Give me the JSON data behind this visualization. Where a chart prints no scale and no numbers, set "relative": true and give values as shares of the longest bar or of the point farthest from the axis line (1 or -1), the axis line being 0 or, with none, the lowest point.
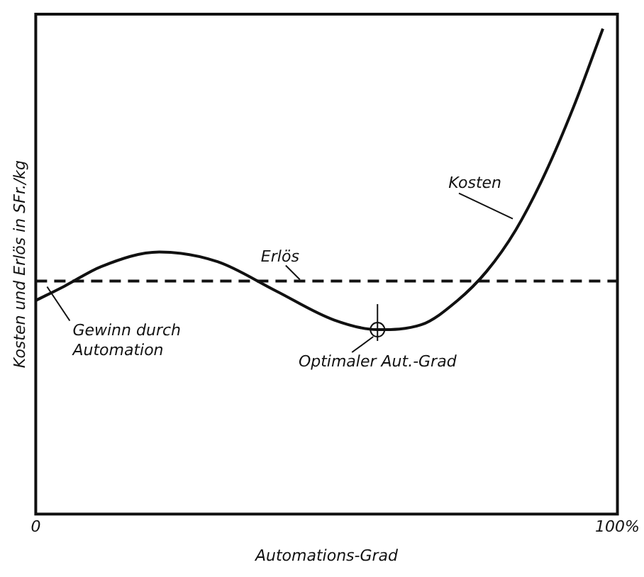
{
  "chart_data": {
    "type": "line",
    "relative": true,
    "xlabel": "Automations-Grad",
    "ylabel": "Kosten und Erlös in SFr./kg",
    "xlim": [
      0,
      100
    ],
    "xticks": [
      0,
      {
        "value": 100,
        "label": "100%"
      }
    ],
    "series": [
      {
        "name": "Kosten",
        "color": "#111111",
        "x": [
          0,
          5,
          11.25,
          21.25,
          31.25,
          41.25,
          51.25,
          58.75,
          66.25,
          72.5,
          77.5,
          82.5,
          87.5,
          92.5,
          97.5
        ],
        "values": [
          0.44,
          0.47,
          0.51,
          0.54,
          0.52,
          0.46,
          0.4,
          0.38,
          0.39,
          0.44,
          0.5,
          0.585,
          0.7,
          0.84,
          1.0
        ]
      },
      {
        "name": "Erlös",
        "color": "#111111",
        "x": [
          0,
          100
        ],
        "values": [
          0.48,
          0.48
        ],
        "line_style": "dashed"
      }
    ],
    "annotations": [
      "Gewinn durch Automation",
      {
        "text": "Optimaler Aut.-Grad",
        "x": 58.75,
        "y": 0.38
      }
    ],
    "legend": false,
    "marker": "none"
  }
}
